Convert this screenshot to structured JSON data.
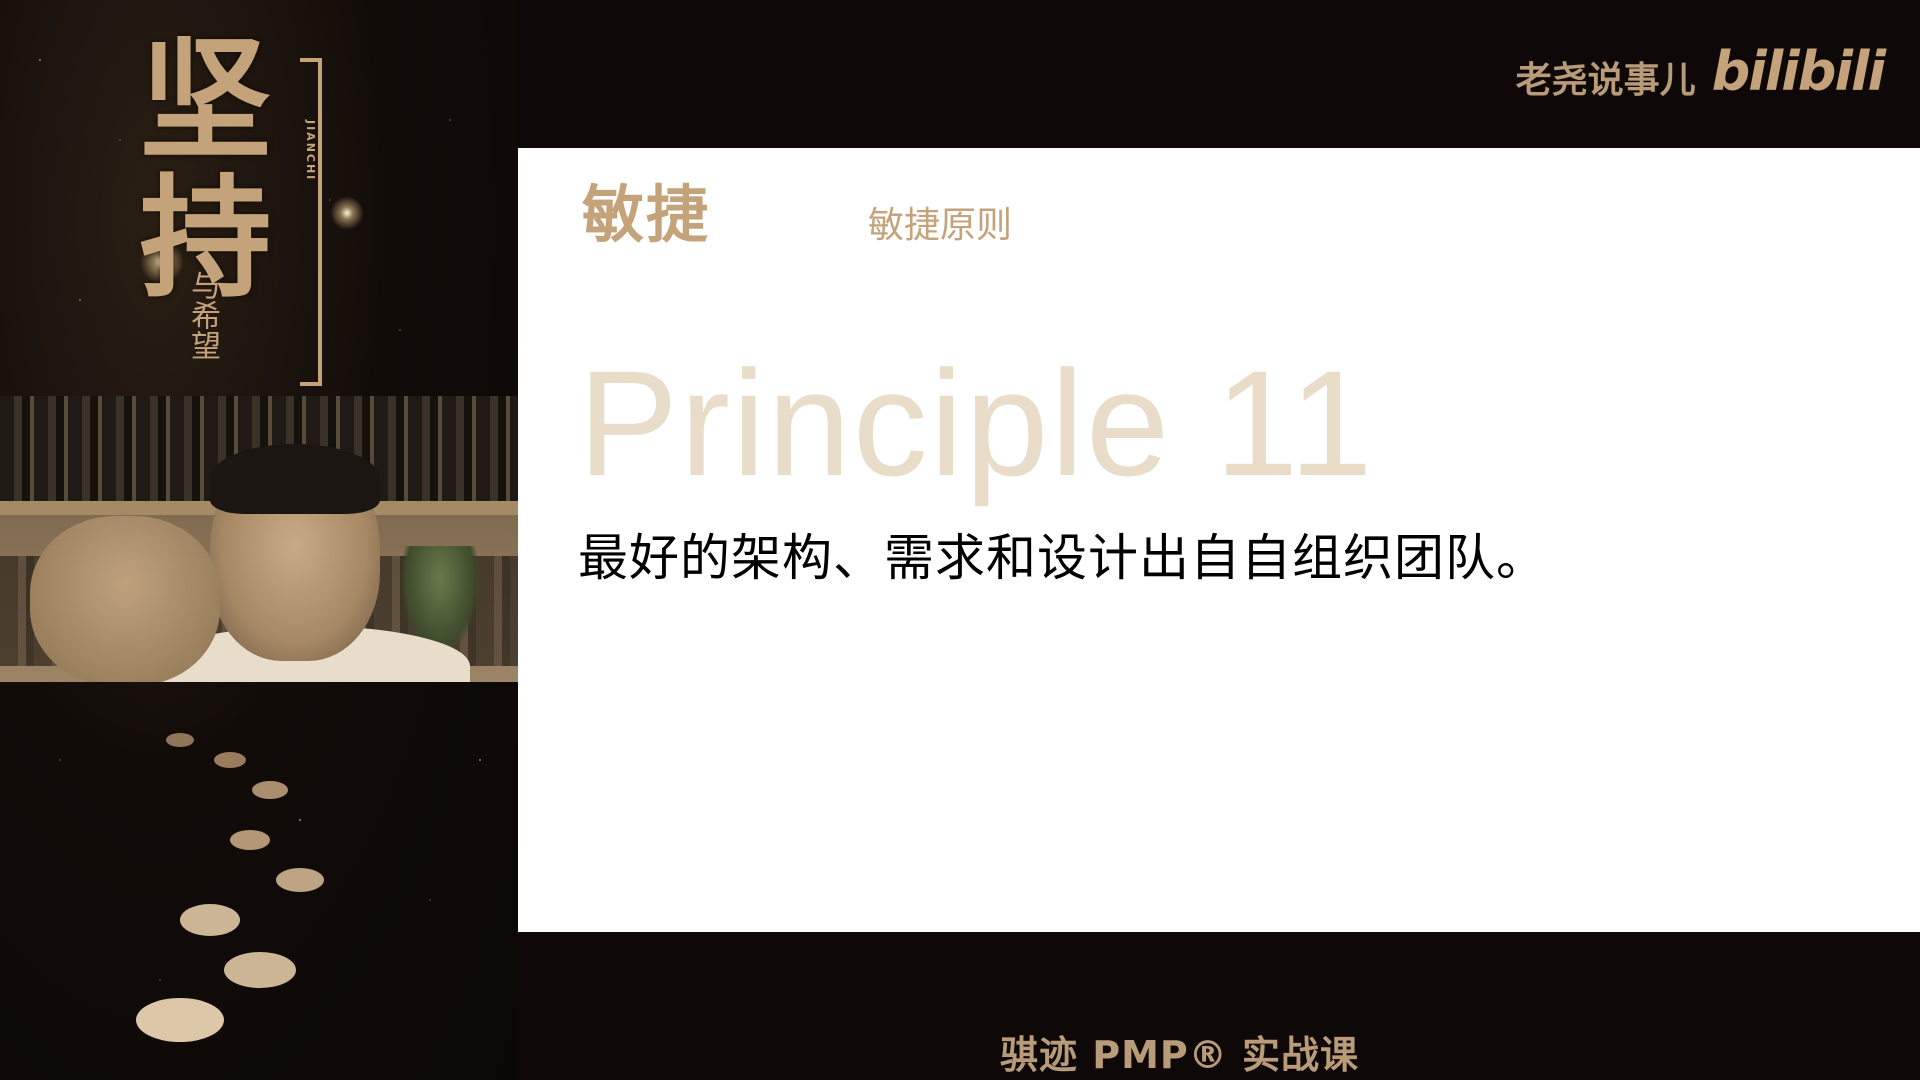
{
  "poster": {
    "title": "坚持",
    "title_roman": "JIANCHI",
    "subtitle": "与希望"
  },
  "slide": {
    "section": "敏捷",
    "subsection": "敏捷原则",
    "principle": "Principle 11",
    "statement": "最好的架构、需求和设计出自自组织团队。"
  },
  "brand": {
    "channel": "老尧说事儿",
    "logo": "bilibili"
  },
  "course": {
    "name": "骐迹 PMP® 实战课"
  },
  "colors": {
    "accent_gold": "#c4a27a",
    "principle_watermark": "#e9dcc9",
    "background": "#0e0908",
    "slide_bg": "#ffffff"
  }
}
